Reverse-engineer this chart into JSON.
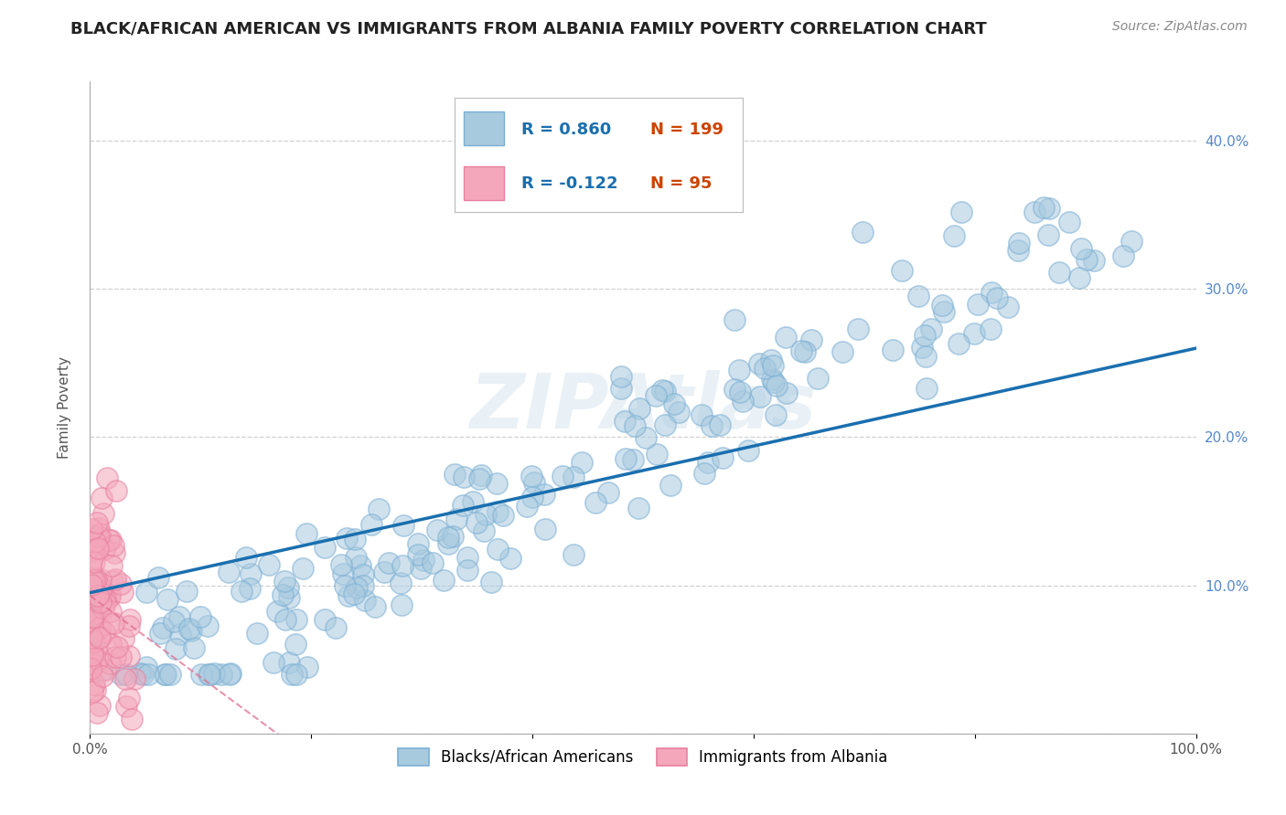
{
  "title": "BLACK/AFRICAN AMERICAN VS IMMIGRANTS FROM ALBANIA FAMILY POVERTY CORRELATION CHART",
  "source_text": "Source: ZipAtlas.com",
  "ylabel": "Family Poverty",
  "watermark": "ZIPAtlas",
  "xlim": [
    0.0,
    1.0
  ],
  "ylim": [
    0.0,
    0.44
  ],
  "x_ticks": [
    0.0,
    0.2,
    0.4,
    0.6,
    0.8,
    1.0
  ],
  "x_tick_labels": [
    "0.0%",
    "",
    "",
    "",
    "",
    "100.0%"
  ],
  "y_ticks": [
    0.0,
    0.1,
    0.2,
    0.3,
    0.4
  ],
  "y_tick_labels": [
    "",
    "10.0%",
    "20.0%",
    "30.0%",
    "40.0%"
  ],
  "blue_color": "#a8cadf",
  "pink_color": "#f4a7bb",
  "blue_edge_color": "#7bafd4",
  "pink_edge_color": "#e87fa0",
  "blue_line_color": "#1a6faf",
  "pink_line_color": "#e07090",
  "legend_R_blue": "R = 0.860",
  "legend_N_blue": "N = 199",
  "legend_R_pink": "R = -0.122",
  "legend_N_pink": "N = 95",
  "legend_label_blue": "Blacks/African Americans",
  "legend_label_pink": "Immigrants from Albania",
  "blue_slope": 0.165,
  "blue_intercept": 0.095,
  "pink_slope": -0.55,
  "pink_intercept": 0.093,
  "background_color": "#ffffff",
  "grid_color": "#cccccc",
  "title_fontsize": 13,
  "axis_label_fontsize": 11,
  "tick_fontsize": 11,
  "right_tick_color": "#5588cc"
}
